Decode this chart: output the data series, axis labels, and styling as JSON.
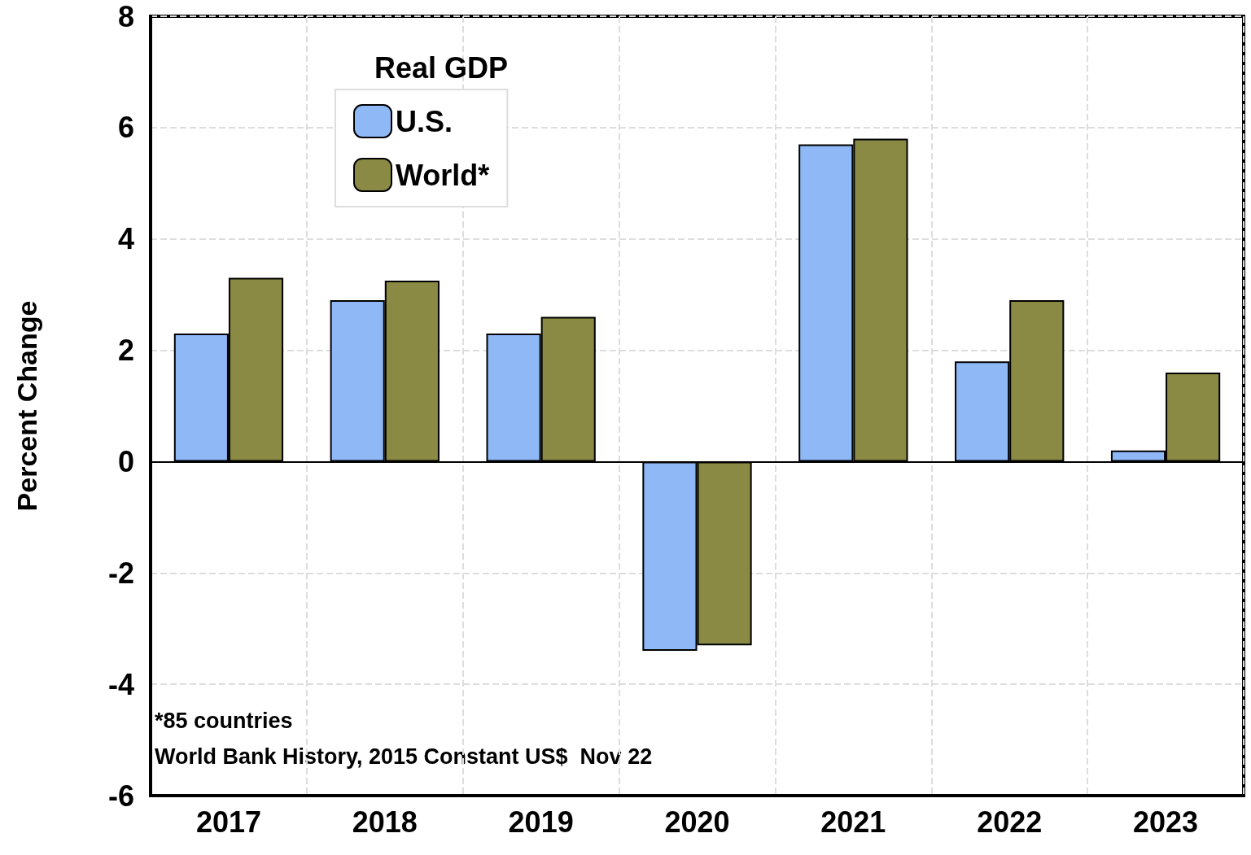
{
  "chart_data": {
    "type": "bar",
    "ylabel": "Percent Change",
    "legend_title": "Real GDP",
    "categories": [
      "2017",
      "2018",
      "2019",
      "2020",
      "2021",
      "2022",
      "2023"
    ],
    "series": [
      {
        "name": "U.S.",
        "color": "#8fb8f7",
        "values": [
          2.3,
          2.9,
          2.3,
          -3.4,
          5.7,
          1.8,
          0.2
        ]
      },
      {
        "name": "World*",
        "color": "#8a8a45",
        "values": [
          3.3,
          3.25,
          2.6,
          -3.3,
          5.8,
          2.9,
          1.6
        ]
      }
    ],
    "ylim": [
      -6,
      8
    ],
    "yticks": [
      -6,
      -4,
      -2,
      0,
      2,
      4,
      6,
      8
    ],
    "grid": true,
    "legend": "top left",
    "annotations": [
      "*85 countries",
      "World Bank History, 2015 Constant US$  Nov 22"
    ]
  }
}
